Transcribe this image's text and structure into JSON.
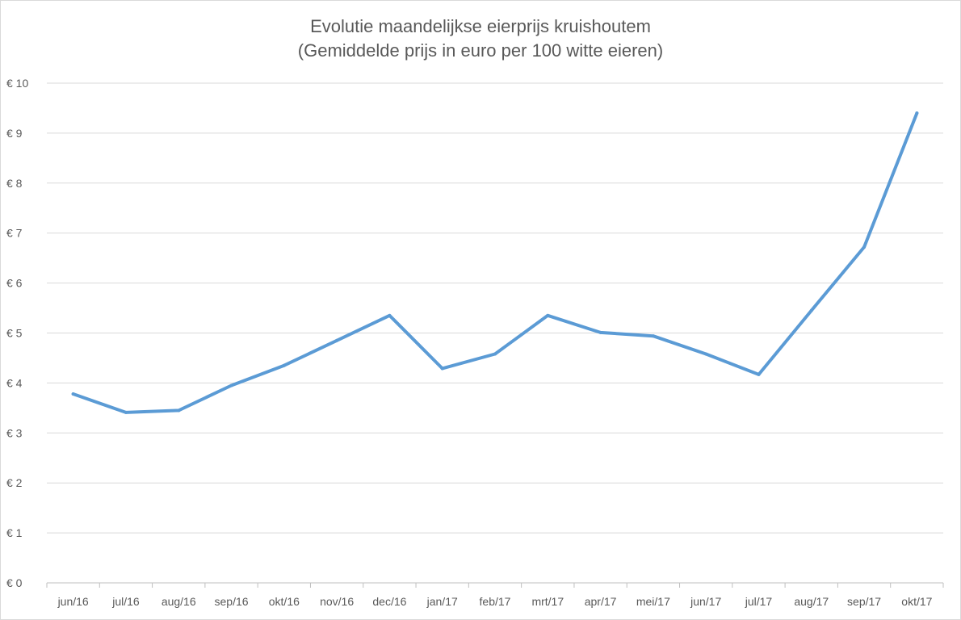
{
  "chart_data": {
    "type": "line",
    "title": "Evolutie maandelijkse eierprijs kruishoutem",
    "subtitle": "(Gemiddelde prijs in euro per 100 witte eieren)",
    "categories": [
      "jun/16",
      "jul/16",
      "aug/16",
      "sep/16",
      "okt/16",
      "nov/16",
      "dec/16",
      "jan/17",
      "feb/17",
      "mrt/17",
      "apr/17",
      "mei/17",
      "jun/17",
      "jul/17",
      "aug/17",
      "sep/17",
      "okt/17"
    ],
    "series": [
      {
        "values": [
          3.78,
          3.41,
          3.45,
          3.95,
          4.35,
          4.85,
          5.35,
          4.29,
          4.58,
          5.35,
          5.01,
          4.94,
          4.58,
          4.17,
          5.45,
          6.72,
          9.4
        ],
        "color": "#5b9bd5"
      }
    ],
    "y_ticks": [
      "€ 0",
      "€ 1",
      "€ 2",
      "€ 3",
      "€ 4",
      "€ 5",
      "€ 6",
      "€ 7",
      "€ 8",
      "€ 9",
      "€ 10"
    ],
    "ylim": [
      0,
      10
    ],
    "grid": true,
    "legend": "none"
  }
}
